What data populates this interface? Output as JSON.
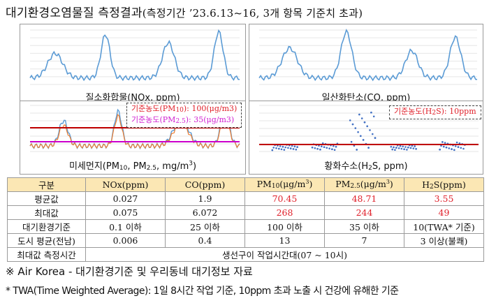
{
  "title": {
    "main": "대기환경오염물질 측정결과",
    "sub": "(측정기간 ’23.6.13~16, 3개 항목 기준치 초과)"
  },
  "charts": [
    {
      "id": "nox",
      "caption": "질소화합물(NOx, ppm)",
      "type": "line",
      "series": [
        {
          "name": "NOx",
          "color": "#5b9bd5"
        }
      ]
    },
    {
      "id": "co",
      "caption": "일산화탄소(CO, ppm)",
      "type": "line",
      "series": [
        {
          "name": "CO",
          "color": "#5b9bd5"
        }
      ]
    },
    {
      "id": "pm",
      "caption_parts": [
        "미세먼지(PM",
        "10",
        ", PM",
        "2.5",
        ", mg/m",
        "3",
        ")"
      ],
      "type": "line",
      "legend": {
        "line1_parts": [
          "기준농도(PM",
          "10",
          "): 100(μg/m3)"
        ],
        "line2_parts": [
          "기준농도(PM",
          "2.5",
          "): 35(μg/m3)"
        ]
      },
      "series": [
        {
          "name": "PM10",
          "color": "#5b9bd5"
        },
        {
          "name": "PM2.5",
          "color": "#ed7d31"
        }
      ],
      "thresholds": [
        {
          "label": "PM10 기준",
          "value": 100,
          "color": "#c00000"
        },
        {
          "label": "PM2.5 기준",
          "value": 35,
          "color": "#cc00cc"
        }
      ]
    },
    {
      "id": "h2s",
      "caption_parts": [
        "황화수소(H",
        "2",
        "S, ppm)"
      ],
      "type": "scatter",
      "legend": {
        "line1_parts": [
          "기준농도(H",
          "2",
          "S): 10ppm"
        ]
      },
      "series": [
        {
          "name": "H2S",
          "color": "#4472c4"
        }
      ],
      "thresholds": [
        {
          "label": "H2S 기준",
          "value": 10,
          "color": "#c00000"
        }
      ]
    }
  ],
  "table": {
    "header": {
      "label": "구분",
      "nox": "NOx(ppm)",
      "co": "CO(ppm)",
      "pm10_parts": [
        "PM",
        "10",
        "(μg/m",
        "3",
        ")"
      ],
      "pm25_parts": [
        "PM",
        "2.5",
        "(μg/m",
        "3",
        ")"
      ],
      "h2s_parts": [
        "H",
        "2",
        "S(ppm)"
      ]
    },
    "rows": [
      {
        "label": "평균값",
        "values": [
          "0.027",
          "1.9",
          "70.45",
          "48.71",
          "3.55"
        ],
        "red": [
          false,
          false,
          true,
          true,
          true
        ]
      },
      {
        "label": "최대값",
        "values": [
          "0.075",
          "6.072",
          "268",
          "244",
          "49"
        ],
        "red": [
          false,
          false,
          true,
          true,
          true
        ]
      },
      {
        "label": "대기환경기준",
        "values": [
          "0.1 이하",
          "25 이하",
          "100 이하",
          "35 이하",
          "10(TWA* 기준)"
        ],
        "red": [
          false,
          false,
          false,
          false,
          false
        ]
      },
      {
        "label": "도시 평균(전남)",
        "values": [
          "0.006",
          "0.4",
          "13",
          "7",
          "3 이상(불쾌)"
        ],
        "red": [
          false,
          false,
          false,
          false,
          false
        ]
      }
    ],
    "last_row": {
      "label": "최대값 측정시간",
      "value": "생선구이 작업시간대(07 ~ 10시)"
    }
  },
  "notes": {
    "note1": "※ Air Korea - 대기환경기준 및 우리동네 대기정보 자료",
    "note2": "* TWA(Time Weighted Average): 1일 8시간 작업 기준, 10ppm 초과 노출 시 건강에 유해한 기준"
  }
}
